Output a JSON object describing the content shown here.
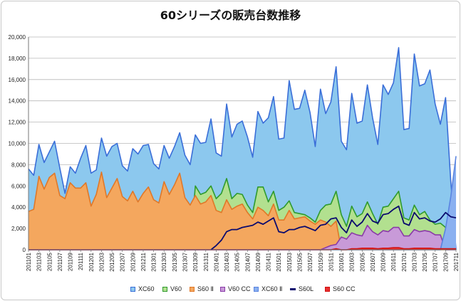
{
  "chart_data": {
    "type": "area",
    "title": "60シリーズの販売台数推移",
    "xlabel": "",
    "ylabel": "",
    "ylim": [
      0,
      20000
    ],
    "y_ticks": [
      "0",
      "2,000",
      "4,000",
      "6,000",
      "8,000",
      "10,000",
      "12,000",
      "14,000",
      "16,000",
      "18,000",
      "20,000"
    ],
    "grid": true,
    "legend_position": "bottom",
    "x": [
      "201101",
      "201102",
      "201103",
      "201104",
      "201105",
      "201106",
      "201107",
      "201108",
      "201109",
      "201110",
      "201111",
      "201112",
      "201201",
      "201202",
      "201203",
      "201204",
      "201205",
      "201206",
      "201207",
      "201208",
      "201209",
      "201210",
      "201211",
      "201212",
      "201301",
      "201302",
      "201303",
      "201304",
      "201305",
      "201306",
      "201307",
      "201308",
      "201309",
      "201310",
      "201311",
      "201312",
      "201401",
      "201402",
      "201403",
      "201404",
      "201405",
      "201406",
      "201407",
      "201408",
      "201409",
      "201410",
      "201411",
      "201412",
      "201501",
      "201502",
      "201503",
      "201504",
      "201505",
      "201506",
      "201507",
      "201508",
      "201509",
      "201510",
      "201511",
      "201512",
      "201601",
      "201602",
      "201603",
      "201604",
      "201605",
      "201606",
      "201607",
      "201608",
      "201609",
      "201610",
      "201611",
      "201612",
      "201701",
      "201702",
      "201703",
      "201704",
      "201705",
      "201706",
      "201707",
      "201708",
      "201709",
      "201710",
      "201711"
    ],
    "x_tick_labels": [
      "201101",
      "201103",
      "201105",
      "201107",
      "201109",
      "201111",
      "201201",
      "201203",
      "201205",
      "201207",
      "201209",
      "201211",
      "201301",
      "201303",
      "201305",
      "201307",
      "201309",
      "201311",
      "201401",
      "201403",
      "201405",
      "201407",
      "201409",
      "201411",
      "201501",
      "201503",
      "201505",
      "201507",
      "201509",
      "201511",
      "201601",
      "201603",
      "201605",
      "201607",
      "201609",
      "201611",
      "201701",
      "201703",
      "201705",
      "201707",
      "201709",
      "201711"
    ],
    "series": [
      {
        "name": "XC60",
        "kind": "area",
        "color": "#8cc8ee",
        "stroke": "#3a6ed8",
        "values": [
          7600,
          7000,
          9900,
          8200,
          9200,
          10200,
          7700,
          5300,
          7800,
          7200,
          8600,
          9800,
          7200,
          7500,
          10500,
          8800,
          9700,
          10000,
          7900,
          7400,
          9500,
          9000,
          9800,
          9900,
          8100,
          7600,
          9800,
          8600,
          9700,
          11000,
          8900,
          8000,
          10800,
          10000,
          10100,
          12300,
          9100,
          8800,
          13700,
          10600,
          11800,
          12100,
          10600,
          8700,
          13000,
          11900,
          12400,
          14400,
          10400,
          10500,
          15900,
          13200,
          13300,
          15000,
          12900,
          9700,
          15100,
          12800,
          13900,
          17200,
          10200,
          9400,
          14700,
          11900,
          12100,
          15500,
          12400,
          9900,
          15500,
          14600,
          15700,
          19000,
          11300,
          11400,
          18400,
          15400,
          15600,
          16900,
          13700,
          11800,
          14300,
          6400,
          0
        ]
      },
      {
        "name": "V60",
        "kind": "area",
        "color": "#b2e08f",
        "stroke": "#2e9a2e",
        "values": [
          0,
          0,
          0,
          0,
          0,
          0,
          0,
          0,
          0,
          0,
          0,
          0,
          0,
          0,
          0,
          0,
          0,
          0,
          0,
          0,
          0,
          0,
          0,
          0,
          0,
          0,
          0,
          0,
          0,
          0,
          0,
          0,
          6000,
          5200,
          5400,
          6000,
          4800,
          5300,
          6700,
          4800,
          5300,
          5200,
          4200,
          3500,
          5900,
          5900,
          4500,
          5500,
          3700,
          4000,
          4600,
          3500,
          3400,
          3300,
          3000,
          2600,
          3700,
          4200,
          4300,
          5500,
          3300,
          2200,
          4100,
          3100,
          3400,
          4500,
          3400,
          2400,
          4000,
          4100,
          4800,
          5500,
          3000,
          2800,
          4200,
          3300,
          3600,
          2800,
          2400,
          2500,
          2100,
          600,
          0
        ]
      },
      {
        "name": "S60 Ⅱ",
        "kind": "area",
        "color": "#f4a75e",
        "stroke": "#e07828",
        "values": [
          3600,
          3800,
          6900,
          5700,
          6800,
          7200,
          5100,
          4800,
          6300,
          5800,
          5800,
          6300,
          4100,
          5200,
          7300,
          4900,
          5800,
          6700,
          5000,
          4600,
          5500,
          4500,
          5300,
          5900,
          4700,
          4400,
          6400,
          5200,
          6100,
          7200,
          4900,
          4200,
          5100,
          4300,
          4500,
          5100,
          3700,
          3500,
          4700,
          3800,
          4100,
          4300,
          3500,
          2900,
          4000,
          3700,
          3200,
          4300,
          2800,
          2800,
          3700,
          2900,
          3000,
          3100,
          2700,
          2400,
          2800,
          2600,
          2200,
          2700,
          0,
          0,
          0,
          0,
          0,
          0,
          0,
          0,
          0,
          0,
          0,
          0,
          0,
          0,
          0,
          0,
          0,
          0,
          0,
          0,
          0,
          0,
          0
        ]
      },
      {
        "name": "V60 CC",
        "kind": "area",
        "color": "#c89ad8",
        "stroke": "#8a3aa8",
        "values": [
          0,
          0,
          0,
          0,
          0,
          0,
          0,
          0,
          0,
          0,
          0,
          0,
          0,
          0,
          0,
          0,
          0,
          0,
          0,
          0,
          0,
          0,
          0,
          0,
          0,
          0,
          0,
          0,
          0,
          0,
          0,
          0,
          0,
          0,
          0,
          0,
          0,
          0,
          0,
          0,
          0,
          0,
          0,
          0,
          0,
          0,
          0,
          0,
          0,
          0,
          0,
          0,
          0,
          0,
          0,
          0,
          0,
          200,
          400,
          500,
          1200,
          1000,
          1600,
          1400,
          1300,
          2300,
          1700,
          1400,
          1800,
          1700,
          2100,
          2100,
          1300,
          1300,
          1900,
          1700,
          1800,
          1700,
          1400,
          1400,
          0,
          0,
          0
        ]
      },
      {
        "name": "XC60 Ⅱ",
        "kind": "area",
        "color": "#8ab0f0",
        "stroke": "#5a84e0",
        "values": [
          0,
          0,
          0,
          0,
          0,
          0,
          0,
          0,
          0,
          0,
          0,
          0,
          0,
          0,
          0,
          0,
          0,
          0,
          0,
          0,
          0,
          0,
          0,
          0,
          0,
          0,
          0,
          0,
          0,
          0,
          0,
          0,
          0,
          0,
          0,
          0,
          0,
          0,
          0,
          0,
          0,
          0,
          0,
          0,
          0,
          0,
          0,
          0,
          0,
          0,
          0,
          0,
          0,
          0,
          0,
          0,
          0,
          0,
          0,
          0,
          0,
          0,
          0,
          0,
          0,
          0,
          0,
          0,
          0,
          0,
          0,
          0,
          0,
          0,
          0,
          0,
          0,
          0,
          0,
          0,
          2000,
          5000,
          8800
        ]
      },
      {
        "name": "S60L",
        "kind": "line",
        "color": "#0a0a6e",
        "values": [
          null,
          null,
          null,
          null,
          null,
          null,
          null,
          null,
          null,
          null,
          null,
          null,
          null,
          null,
          null,
          null,
          null,
          null,
          null,
          null,
          null,
          null,
          null,
          null,
          null,
          null,
          null,
          null,
          null,
          null,
          null,
          null,
          null,
          null,
          null,
          0,
          400,
          900,
          1700,
          1900,
          1900,
          2100,
          2200,
          2300,
          2600,
          2400,
          2700,
          3000,
          1700,
          1600,
          1900,
          1900,
          2100,
          2200,
          2000,
          1800,
          2300,
          2400,
          2900,
          3000,
          2100,
          1600,
          2800,
          2200,
          2600,
          3400,
          2700,
          2500,
          3300,
          3400,
          3800,
          4100,
          2500,
          2300,
          3500,
          2900,
          3000,
          2700,
          2600,
          2900,
          3500,
          3100,
          3000
        ]
      },
      {
        "name": "S60 CC",
        "kind": "area",
        "color": "#e83030",
        "stroke": "#d01010",
        "values": [
          0,
          0,
          0,
          0,
          0,
          0,
          0,
          0,
          0,
          0,
          0,
          0,
          0,
          0,
          0,
          0,
          0,
          0,
          0,
          0,
          0,
          0,
          0,
          0,
          0,
          0,
          0,
          0,
          0,
          0,
          0,
          0,
          0,
          0,
          0,
          0,
          0,
          0,
          0,
          0,
          0,
          0,
          0,
          0,
          0,
          0,
          0,
          0,
          0,
          0,
          0,
          0,
          0,
          0,
          0,
          0,
          0,
          0,
          0,
          100,
          0,
          0,
          100,
          100,
          150,
          150,
          150,
          100,
          150,
          150,
          200,
          200,
          100,
          100,
          150,
          150,
          150,
          150,
          100,
          100,
          100,
          100,
          100
        ]
      }
    ]
  }
}
